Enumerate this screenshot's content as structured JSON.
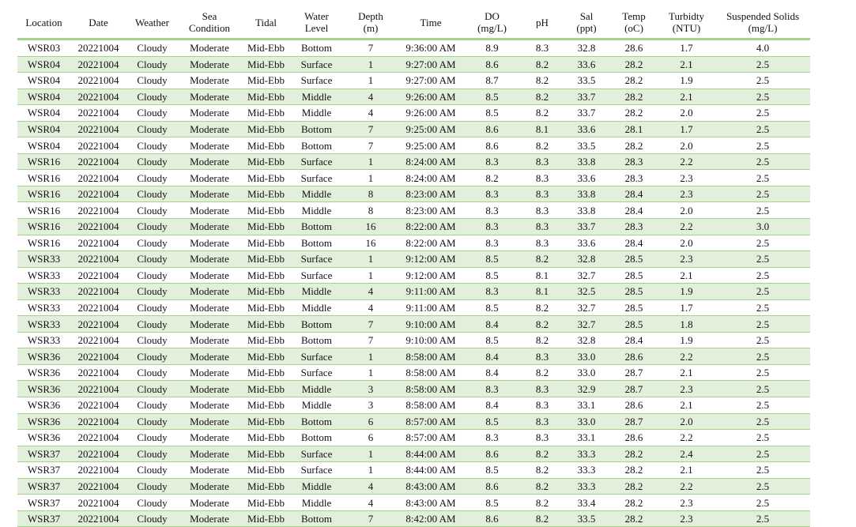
{
  "table": {
    "headers": [
      [
        "Location"
      ],
      [
        "Date"
      ],
      [
        "Weather"
      ],
      [
        "Sea",
        "Condition"
      ],
      [
        "Tidal"
      ],
      [
        "Water",
        "Level"
      ],
      [
        "Depth",
        "(m)"
      ],
      [
        "Time"
      ],
      [
        "DO",
        "(mg/L)"
      ],
      [
        "pH"
      ],
      [
        "Sal",
        "(ppt)"
      ],
      [
        "Temp",
        "(oC)"
      ],
      [
        "Turbidty",
        "(NTU)"
      ],
      [
        "Suspended Solids",
        "(mg/L)"
      ]
    ],
    "rows": [
      [
        "WSR03",
        "20221004",
        "Cloudy",
        "Moderate",
        "Mid-Ebb",
        "Bottom",
        "7",
        "9:36:00 AM",
        "8.9",
        "8.3",
        "32.8",
        "28.6",
        "1.7",
        "4.0"
      ],
      [
        "WSR04",
        "20221004",
        "Cloudy",
        "Moderate",
        "Mid-Ebb",
        "Surface",
        "1",
        "9:27:00 AM",
        "8.6",
        "8.2",
        "33.6",
        "28.2",
        "2.1",
        "2.5"
      ],
      [
        "WSR04",
        "20221004",
        "Cloudy",
        "Moderate",
        "Mid-Ebb",
        "Surface",
        "1",
        "9:27:00 AM",
        "8.7",
        "8.2",
        "33.5",
        "28.2",
        "1.9",
        "2.5"
      ],
      [
        "WSR04",
        "20221004",
        "Cloudy",
        "Moderate",
        "Mid-Ebb",
        "Middle",
        "4",
        "9:26:00 AM",
        "8.5",
        "8.2",
        "33.7",
        "28.2",
        "2.1",
        "2.5"
      ],
      [
        "WSR04",
        "20221004",
        "Cloudy",
        "Moderate",
        "Mid-Ebb",
        "Middle",
        "4",
        "9:26:00 AM",
        "8.5",
        "8.2",
        "33.7",
        "28.2",
        "2.0",
        "2.5"
      ],
      [
        "WSR04",
        "20221004",
        "Cloudy",
        "Moderate",
        "Mid-Ebb",
        "Bottom",
        "7",
        "9:25:00 AM",
        "8.6",
        "8.1",
        "33.6",
        "28.1",
        "1.7",
        "2.5"
      ],
      [
        "WSR04",
        "20221004",
        "Cloudy",
        "Moderate",
        "Mid-Ebb",
        "Bottom",
        "7",
        "9:25:00 AM",
        "8.6",
        "8.2",
        "33.5",
        "28.2",
        "2.0",
        "2.5"
      ],
      [
        "WSR16",
        "20221004",
        "Cloudy",
        "Moderate",
        "Mid-Ebb",
        "Surface",
        "1",
        "8:24:00 AM",
        "8.3",
        "8.3",
        "33.8",
        "28.3",
        "2.2",
        "2.5"
      ],
      [
        "WSR16",
        "20221004",
        "Cloudy",
        "Moderate",
        "Mid-Ebb",
        "Surface",
        "1",
        "8:24:00 AM",
        "8.2",
        "8.3",
        "33.6",
        "28.3",
        "2.3",
        "2.5"
      ],
      [
        "WSR16",
        "20221004",
        "Cloudy",
        "Moderate",
        "Mid-Ebb",
        "Middle",
        "8",
        "8:23:00 AM",
        "8.3",
        "8.3",
        "33.8",
        "28.4",
        "2.3",
        "2.5"
      ],
      [
        "WSR16",
        "20221004",
        "Cloudy",
        "Moderate",
        "Mid-Ebb",
        "Middle",
        "8",
        "8:23:00 AM",
        "8.3",
        "8.3",
        "33.8",
        "28.4",
        "2.0",
        "2.5"
      ],
      [
        "WSR16",
        "20221004",
        "Cloudy",
        "Moderate",
        "Mid-Ebb",
        "Bottom",
        "16",
        "8:22:00 AM",
        "8.3",
        "8.3",
        "33.7",
        "28.3",
        "2.2",
        "3.0"
      ],
      [
        "WSR16",
        "20221004",
        "Cloudy",
        "Moderate",
        "Mid-Ebb",
        "Bottom",
        "16",
        "8:22:00 AM",
        "8.3",
        "8.3",
        "33.6",
        "28.4",
        "2.0",
        "2.5"
      ],
      [
        "WSR33",
        "20221004",
        "Cloudy",
        "Moderate",
        "Mid-Ebb",
        "Surface",
        "1",
        "9:12:00 AM",
        "8.5",
        "8.2",
        "32.8",
        "28.5",
        "2.3",
        "2.5"
      ],
      [
        "WSR33",
        "20221004",
        "Cloudy",
        "Moderate",
        "Mid-Ebb",
        "Surface",
        "1",
        "9:12:00 AM",
        "8.5",
        "8.1",
        "32.7",
        "28.5",
        "2.1",
        "2.5"
      ],
      [
        "WSR33",
        "20221004",
        "Cloudy",
        "Moderate",
        "Mid-Ebb",
        "Middle",
        "4",
        "9:11:00 AM",
        "8.3",
        "8.1",
        "32.5",
        "28.5",
        "1.9",
        "2.5"
      ],
      [
        "WSR33",
        "20221004",
        "Cloudy",
        "Moderate",
        "Mid-Ebb",
        "Middle",
        "4",
        "9:11:00 AM",
        "8.5",
        "8.2",
        "32.7",
        "28.5",
        "1.7",
        "2.5"
      ],
      [
        "WSR33",
        "20221004",
        "Cloudy",
        "Moderate",
        "Mid-Ebb",
        "Bottom",
        "7",
        "9:10:00 AM",
        "8.4",
        "8.2",
        "32.7",
        "28.5",
        "1.8",
        "2.5"
      ],
      [
        "WSR33",
        "20221004",
        "Cloudy",
        "Moderate",
        "Mid-Ebb",
        "Bottom",
        "7",
        "9:10:00 AM",
        "8.5",
        "8.2",
        "32.8",
        "28.4",
        "1.9",
        "2.5"
      ],
      [
        "WSR36",
        "20221004",
        "Cloudy",
        "Moderate",
        "Mid-Ebb",
        "Surface",
        "1",
        "8:58:00 AM",
        "8.4",
        "8.3",
        "33.0",
        "28.6",
        "2.2",
        "2.5"
      ],
      [
        "WSR36",
        "20221004",
        "Cloudy",
        "Moderate",
        "Mid-Ebb",
        "Surface",
        "1",
        "8:58:00 AM",
        "8.4",
        "8.2",
        "33.0",
        "28.7",
        "2.1",
        "2.5"
      ],
      [
        "WSR36",
        "20221004",
        "Cloudy",
        "Moderate",
        "Mid-Ebb",
        "Middle",
        "3",
        "8:58:00 AM",
        "8.3",
        "8.3",
        "32.9",
        "28.7",
        "2.3",
        "2.5"
      ],
      [
        "WSR36",
        "20221004",
        "Cloudy",
        "Moderate",
        "Mid-Ebb",
        "Middle",
        "3",
        "8:58:00 AM",
        "8.4",
        "8.3",
        "33.1",
        "28.6",
        "2.1",
        "2.5"
      ],
      [
        "WSR36",
        "20221004",
        "Cloudy",
        "Moderate",
        "Mid-Ebb",
        "Bottom",
        "6",
        "8:57:00 AM",
        "8.5",
        "8.3",
        "33.0",
        "28.7",
        "2.0",
        "2.5"
      ],
      [
        "WSR36",
        "20221004",
        "Cloudy",
        "Moderate",
        "Mid-Ebb",
        "Bottom",
        "6",
        "8:57:00 AM",
        "8.3",
        "8.3",
        "33.1",
        "28.6",
        "2.2",
        "2.5"
      ],
      [
        "WSR37",
        "20221004",
        "Cloudy",
        "Moderate",
        "Mid-Ebb",
        "Surface",
        "1",
        "8:44:00 AM",
        "8.6",
        "8.2",
        "33.3",
        "28.2",
        "2.4",
        "2.5"
      ],
      [
        "WSR37",
        "20221004",
        "Cloudy",
        "Moderate",
        "Mid-Ebb",
        "Surface",
        "1",
        "8:44:00 AM",
        "8.5",
        "8.2",
        "33.3",
        "28.2",
        "2.1",
        "2.5"
      ],
      [
        "WSR37",
        "20221004",
        "Cloudy",
        "Moderate",
        "Mid-Ebb",
        "Middle",
        "4",
        "8:43:00 AM",
        "8.6",
        "8.2",
        "33.3",
        "28.2",
        "2.2",
        "2.5"
      ],
      [
        "WSR37",
        "20221004",
        "Cloudy",
        "Moderate",
        "Mid-Ebb",
        "Middle",
        "4",
        "8:43:00 AM",
        "8.5",
        "8.2",
        "33.4",
        "28.2",
        "2.3",
        "2.5"
      ],
      [
        "WSR37",
        "20221004",
        "Cloudy",
        "Moderate",
        "Mid-Ebb",
        "Bottom",
        "7",
        "8:42:00 AM",
        "8.6",
        "8.2",
        "33.5",
        "28.2",
        "2.3",
        "2.5"
      ]
    ]
  },
  "colors": {
    "band": "#e2efda",
    "rule": "#a9d18e"
  }
}
